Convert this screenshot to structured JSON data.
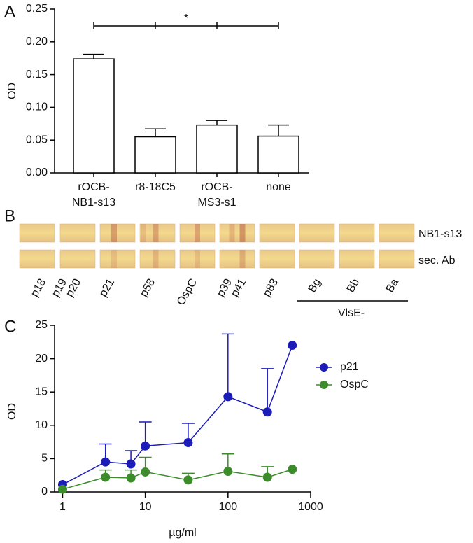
{
  "chart_data": [
    {
      "type": "bar",
      "panel": "A",
      "ylabel": "OD",
      "categories": [
        [
          "rOCB-",
          "NB1-s13"
        ],
        [
          "r8-18C5"
        ],
        [
          "rOCB-",
          "MS3-s1"
        ],
        [
          "none"
        ]
      ],
      "values": [
        0.174,
        0.055,
        0.073,
        0.056
      ],
      "errors": [
        0.007,
        0.012,
        0.007,
        0.017
      ],
      "color": "#ffffff",
      "annotation": "*",
      "ylim": [
        0,
        0.25
      ],
      "yticks": [
        {
          "value": 0,
          "label": "0.00"
        },
        {
          "value": 0.05,
          "label": "0.05"
        },
        {
          "value": 0.1,
          "label": "0.10"
        },
        {
          "value": 0.15,
          "label": "0.15"
        },
        {
          "value": 0.2,
          "label": "0.20"
        },
        {
          "value": 0.25,
          "label": "0.25"
        }
      ]
    },
    {
      "type": "line",
      "panel": "C",
      "ylabel": "OD",
      "xlabel": "µg/ml",
      "xlog": true,
      "x": [
        1,
        3.3,
        6.7,
        10,
        33,
        100,
        300,
        600
      ],
      "series": [
        {
          "name": "p21",
          "color": "#1c1cb8",
          "values": [
            1.1,
            4.5,
            4.2,
            6.9,
            7.4,
            14.3,
            12.0,
            22.0
          ],
          "errors": [
            null,
            2.7,
            2.0,
            3.6,
            2.9,
            9.4,
            6.5,
            null
          ]
        },
        {
          "name": "OspC",
          "color": "#3c8c2c",
          "values": [
            0.4,
            2.2,
            2.1,
            3.0,
            1.8,
            3.1,
            2.2,
            3.4
          ],
          "errors": [
            null,
            1.1,
            1.2,
            2.2,
            1.0,
            2.6,
            1.6,
            null
          ]
        }
      ],
      "xlim": [
        0.8,
        1000
      ],
      "xticks": [
        1,
        10,
        100,
        1000
      ],
      "ylim": [
        0,
        25
      ],
      "yticks": [
        0,
        5,
        10,
        15,
        20,
        25
      ],
      "legend": "right"
    }
  ],
  "blot": {
    "panel": "B",
    "lanes": [
      "p18",
      "p19",
      "p20",
      "p21",
      "p58",
      "OspC",
      "p39",
      "p41",
      "p83",
      "Bg",
      "Bb",
      "Ba"
    ],
    "rows": [
      "NB1-s13",
      "sec. Ab"
    ],
    "group_label": "VlsE-"
  }
}
